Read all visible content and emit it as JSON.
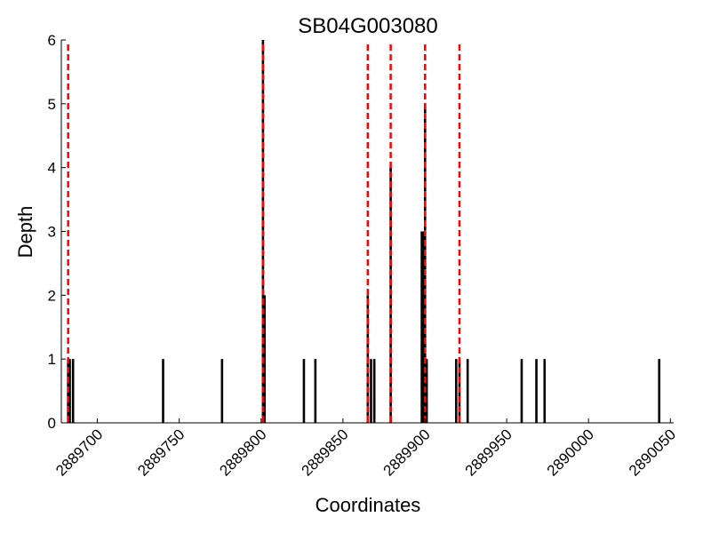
{
  "chart_data": {
    "type": "bar",
    "title": "SB04G003080",
    "xlabel": "Coordinates",
    "ylabel": "Depth",
    "xlim": [
      2889678,
      2890052
    ],
    "ylim": [
      0,
      6
    ],
    "x_ticks": [
      2889700,
      2889750,
      2889800,
      2889850,
      2889900,
      2889950,
      2890000,
      2890050
    ],
    "y_ticks": [
      0,
      1,
      2,
      3,
      4,
      5,
      6
    ],
    "grid": false,
    "bars": [
      {
        "x": 2889682,
        "y": 1
      },
      {
        "x": 2889683,
        "y": 1
      },
      {
        "x": 2889685,
        "y": 1
      },
      {
        "x": 2889740,
        "y": 1
      },
      {
        "x": 2889776,
        "y": 1
      },
      {
        "x": 2889801,
        "y": 6
      },
      {
        "x": 2889802,
        "y": 2
      },
      {
        "x": 2889826,
        "y": 1
      },
      {
        "x": 2889833,
        "y": 1
      },
      {
        "x": 2889865,
        "y": 2
      },
      {
        "x": 2889867,
        "y": 1
      },
      {
        "x": 2889869,
        "y": 1
      },
      {
        "x": 2889879,
        "y": 4
      },
      {
        "x": 2889898,
        "y": 3
      },
      {
        "x": 2889899,
        "y": 3
      },
      {
        "x": 2889900,
        "y": 5
      },
      {
        "x": 2889901,
        "y": 1
      },
      {
        "x": 2889919,
        "y": 1
      },
      {
        "x": 2889921,
        "y": 1
      },
      {
        "x": 2889926,
        "y": 1
      },
      {
        "x": 2889959,
        "y": 1
      },
      {
        "x": 2889968,
        "y": 1
      },
      {
        "x": 2889973,
        "y": 1
      },
      {
        "x": 2890043,
        "y": 1
      }
    ],
    "vlines": [
      2889682,
      2889801,
      2889865,
      2889879,
      2889900,
      2889921
    ],
    "vline_color": "#ff0000",
    "bar_color": "#000000"
  }
}
